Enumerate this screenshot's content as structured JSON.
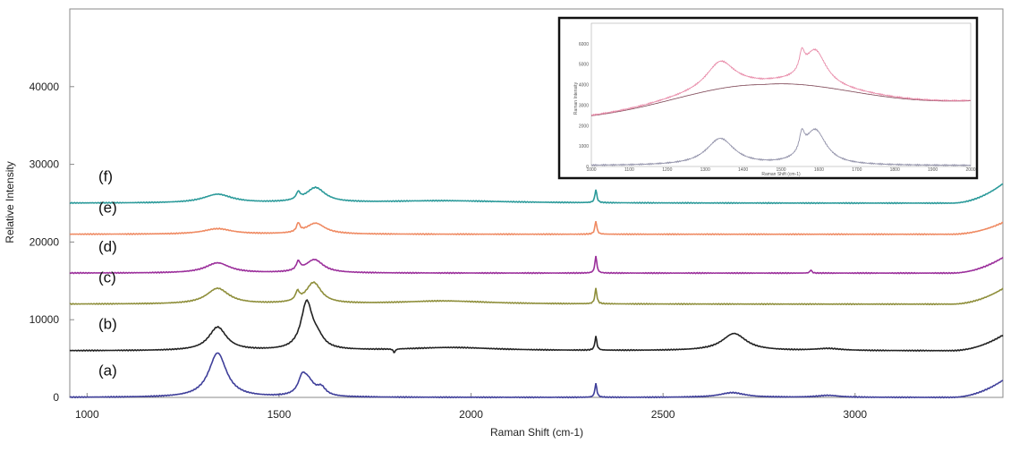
{
  "chart_data": {
    "type": "line",
    "xlabel": "Raman Shift (cm-1)",
    "ylabel": "Relative Intensity",
    "xlim": [
      955,
      3385
    ],
    "ylim": [
      0,
      50000
    ],
    "x_ticks": [
      "1000",
      "1500",
      "2000",
      "2500",
      "3000"
    ],
    "y_ticks": [
      "0",
      "10000",
      "20000",
      "30000",
      "40000"
    ],
    "grid": false,
    "legend": "none",
    "series": [
      {
        "name": "(a)",
        "color": "#3f3f9a",
        "baseline": 0,
        "edge": 2200,
        "peaks": [
          [
            1340,
            5700,
            28
          ],
          [
            1560,
            1800,
            12
          ],
          [
            1575,
            1900,
            20
          ],
          [
            1610,
            1000,
            14
          ],
          [
            2325,
            1800,
            3
          ],
          [
            2680,
            600,
            40
          ],
          [
            2930,
            250,
            35
          ]
        ]
      },
      {
        "name": "(b)",
        "color": "#222222",
        "baseline": 6000,
        "edge": 2000,
        "peaks": [
          [
            1340,
            3000,
            28
          ],
          [
            1572,
            6000,
            18
          ],
          [
            1600,
            1200,
            20
          ],
          [
            1800,
            -500,
            3
          ],
          [
            1950,
            400,
            140
          ],
          [
            2325,
            1800,
            3
          ],
          [
            2685,
            2200,
            38
          ],
          [
            2930,
            250,
            40
          ]
        ]
      },
      {
        "name": "(c)",
        "color": "#8e8e3a",
        "baseline": 12000,
        "edge": 2000,
        "peaks": [
          [
            1340,
            2000,
            35
          ],
          [
            1548,
            1100,
            6
          ],
          [
            1590,
            2700,
            24
          ],
          [
            1930,
            400,
            140
          ],
          [
            2325,
            2000,
            3
          ]
        ]
      },
      {
        "name": "(d)",
        "color": "#9b2f9b",
        "baseline": 16000,
        "edge": 2000,
        "peaks": [
          [
            1340,
            1300,
            38
          ],
          [
            1550,
            1100,
            6
          ],
          [
            1592,
            1700,
            28
          ],
          [
            2325,
            2200,
            3
          ],
          [
            2885,
            400,
            3
          ]
        ]
      },
      {
        "name": "(e)",
        "color": "#ef8a62",
        "baseline": 21000,
        "edge": 1500,
        "peaks": [
          [
            1340,
            700,
            45
          ],
          [
            1550,
            1100,
            5
          ],
          [
            1595,
            1400,
            30
          ],
          [
            2325,
            1700,
            3
          ]
        ]
      },
      {
        "name": "(f)",
        "color": "#2b9a9a",
        "baseline": 25000,
        "edge": 2500,
        "peaks": [
          [
            1340,
            1100,
            45
          ],
          [
            1550,
            900,
            6
          ],
          [
            1595,
            1900,
            30
          ],
          [
            1930,
            300,
            200
          ],
          [
            2325,
            1700,
            3
          ]
        ]
      }
    ],
    "inset": {
      "xlabel": "Raman Shift (cm-1)",
      "ylabel": "Raman Intensity",
      "xlim": [
        1000,
        2000
      ],
      "ylim": [
        0,
        7000
      ],
      "x_ticks": [
        "1000",
        "1100",
        "1200",
        "1300",
        "1400",
        "1500",
        "1600",
        "1700",
        "1800",
        "1900",
        "2000"
      ],
      "y_ticks": [
        "0",
        "1000",
        "2000",
        "3000",
        "4000",
        "5000",
        "6000"
      ],
      "colors": {
        "spectrum": "#e88aa8",
        "background": "#7a4050",
        "corrected": "#9090a8"
      }
    }
  }
}
